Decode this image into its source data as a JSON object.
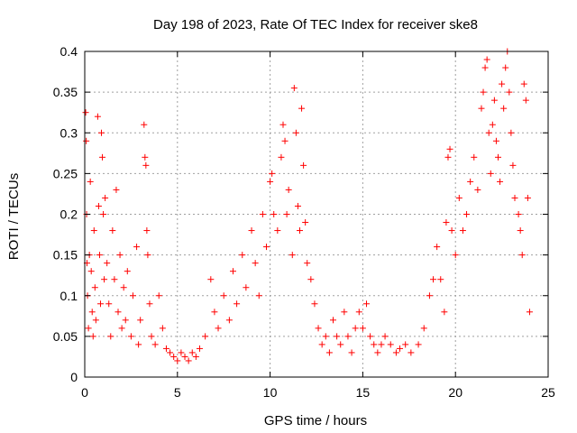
{
  "chart_data": {
    "type": "scatter",
    "title": "Day 198 of 2023, Rate Of TEC Index for receiver ske8",
    "xlabel": "GPS time / hours",
    "ylabel": "ROTI / TECUs",
    "xlim": [
      0,
      25
    ],
    "ylim": [
      0,
      0.4
    ],
    "xticks": [
      0,
      5,
      10,
      15,
      20,
      25
    ],
    "yticks": [
      0,
      0.05,
      0.1,
      0.15,
      0.2,
      0.25,
      0.3,
      0.35,
      0.4
    ],
    "grid": true,
    "marker": "+",
    "color": "#ff0000",
    "series": [
      {
        "name": "",
        "points": [
          [
            0.05,
            0.325
          ],
          [
            0.08,
            0.29
          ],
          [
            0.1,
            0.2
          ],
          [
            0.12,
            0.14
          ],
          [
            0.15,
            0.1
          ],
          [
            0.2,
            0.06
          ],
          [
            0.25,
            0.15
          ],
          [
            0.3,
            0.24
          ],
          [
            0.35,
            0.13
          ],
          [
            0.4,
            0.08
          ],
          [
            0.45,
            0.05
          ],
          [
            0.5,
            0.18
          ],
          [
            0.55,
            0.11
          ],
          [
            0.6,
            0.07
          ],
          [
            0.7,
            0.32
          ],
          [
            0.75,
            0.21
          ],
          [
            0.8,
            0.15
          ],
          [
            0.85,
            0.09
          ],
          [
            0.9,
            0.3
          ],
          [
            0.95,
            0.27
          ],
          [
            1.0,
            0.2
          ],
          [
            1.05,
            0.12
          ],
          [
            1.1,
            0.22
          ],
          [
            1.2,
            0.14
          ],
          [
            1.3,
            0.09
          ],
          [
            1.4,
            0.05
          ],
          [
            1.5,
            0.18
          ],
          [
            1.6,
            0.12
          ],
          [
            1.7,
            0.23
          ],
          [
            1.8,
            0.08
          ],
          [
            1.9,
            0.15
          ],
          [
            2.0,
            0.06
          ],
          [
            2.1,
            0.11
          ],
          [
            2.2,
            0.07
          ],
          [
            2.3,
            0.13
          ],
          [
            2.5,
            0.05
          ],
          [
            2.6,
            0.1
          ],
          [
            2.8,
            0.16
          ],
          [
            2.9,
            0.04
          ],
          [
            3.0,
            0.07
          ],
          [
            3.2,
            0.31
          ],
          [
            3.25,
            0.27
          ],
          [
            3.3,
            0.26
          ],
          [
            3.35,
            0.18
          ],
          [
            3.4,
            0.15
          ],
          [
            3.5,
            0.09
          ],
          [
            3.6,
            0.05
          ],
          [
            3.8,
            0.04
          ],
          [
            4.0,
            0.1
          ],
          [
            4.2,
            0.06
          ],
          [
            4.4,
            0.035
          ],
          [
            4.6,
            0.03
          ],
          [
            4.8,
            0.025
          ],
          [
            5.0,
            0.02
          ],
          [
            5.2,
            0.03
          ],
          [
            5.4,
            0.025
          ],
          [
            5.6,
            0.02
          ],
          [
            5.8,
            0.03
          ],
          [
            6.0,
            0.025
          ],
          [
            6.2,
            0.035
          ],
          [
            6.5,
            0.05
          ],
          [
            6.8,
            0.12
          ],
          [
            7.0,
            0.08
          ],
          [
            7.2,
            0.06
          ],
          [
            7.5,
            0.1
          ],
          [
            7.8,
            0.07
          ],
          [
            8.0,
            0.13
          ],
          [
            8.2,
            0.09
          ],
          [
            8.5,
            0.15
          ],
          [
            8.7,
            0.11
          ],
          [
            9.0,
            0.18
          ],
          [
            9.2,
            0.14
          ],
          [
            9.4,
            0.1
          ],
          [
            9.6,
            0.2
          ],
          [
            9.8,
            0.16
          ],
          [
            10.0,
            0.24
          ],
          [
            10.1,
            0.25
          ],
          [
            10.2,
            0.2
          ],
          [
            10.4,
            0.18
          ],
          [
            10.6,
            0.27
          ],
          [
            10.7,
            0.31
          ],
          [
            10.8,
            0.29
          ],
          [
            10.9,
            0.2
          ],
          [
            11.0,
            0.23
          ],
          [
            11.2,
            0.15
          ],
          [
            11.3,
            0.355
          ],
          [
            11.4,
            0.3
          ],
          [
            11.5,
            0.21
          ],
          [
            11.6,
            0.18
          ],
          [
            11.7,
            0.33
          ],
          [
            11.8,
            0.26
          ],
          [
            11.9,
            0.19
          ],
          [
            12.0,
            0.14
          ],
          [
            12.2,
            0.12
          ],
          [
            12.4,
            0.09
          ],
          [
            12.6,
            0.06
          ],
          [
            12.8,
            0.04
          ],
          [
            13.0,
            0.05
          ],
          [
            13.2,
            0.03
          ],
          [
            13.4,
            0.07
          ],
          [
            13.6,
            0.05
          ],
          [
            13.8,
            0.04
          ],
          [
            14.0,
            0.08
          ],
          [
            14.2,
            0.05
          ],
          [
            14.4,
            0.03
          ],
          [
            14.6,
            0.06
          ],
          [
            14.8,
            0.08
          ],
          [
            15.0,
            0.06
          ],
          [
            15.2,
            0.09
          ],
          [
            15.4,
            0.05
          ],
          [
            15.6,
            0.04
          ],
          [
            15.8,
            0.03
          ],
          [
            16.0,
            0.04
          ],
          [
            16.2,
            0.05
          ],
          [
            16.5,
            0.04
          ],
          [
            16.8,
            0.03
          ],
          [
            17.0,
            0.035
          ],
          [
            17.3,
            0.04
          ],
          [
            17.6,
            0.03
          ],
          [
            18.0,
            0.04
          ],
          [
            18.3,
            0.06
          ],
          [
            18.6,
            0.1
          ],
          [
            18.8,
            0.12
          ],
          [
            19.0,
            0.16
          ],
          [
            19.2,
            0.12
          ],
          [
            19.4,
            0.08
          ],
          [
            19.5,
            0.19
          ],
          [
            19.6,
            0.27
          ],
          [
            19.7,
            0.28
          ],
          [
            19.8,
            0.18
          ],
          [
            20.0,
            0.15
          ],
          [
            20.2,
            0.22
          ],
          [
            20.4,
            0.18
          ],
          [
            20.6,
            0.2
          ],
          [
            20.8,
            0.24
          ],
          [
            21.0,
            0.27
          ],
          [
            21.2,
            0.23
          ],
          [
            21.4,
            0.33
          ],
          [
            21.5,
            0.35
          ],
          [
            21.6,
            0.38
          ],
          [
            21.7,
            0.39
          ],
          [
            21.8,
            0.3
          ],
          [
            21.9,
            0.25
          ],
          [
            22.0,
            0.31
          ],
          [
            22.1,
            0.34
          ],
          [
            22.2,
            0.29
          ],
          [
            22.3,
            0.27
          ],
          [
            22.4,
            0.24
          ],
          [
            22.5,
            0.36
          ],
          [
            22.6,
            0.33
          ],
          [
            22.7,
            0.38
          ],
          [
            22.8,
            0.4
          ],
          [
            22.9,
            0.35
          ],
          [
            23.0,
            0.3
          ],
          [
            23.1,
            0.26
          ],
          [
            23.2,
            0.22
          ],
          [
            23.4,
            0.2
          ],
          [
            23.5,
            0.18
          ],
          [
            23.6,
            0.15
          ],
          [
            23.7,
            0.36
          ],
          [
            23.8,
            0.34
          ],
          [
            23.9,
            0.22
          ],
          [
            24.0,
            0.08
          ]
        ]
      }
    ]
  }
}
